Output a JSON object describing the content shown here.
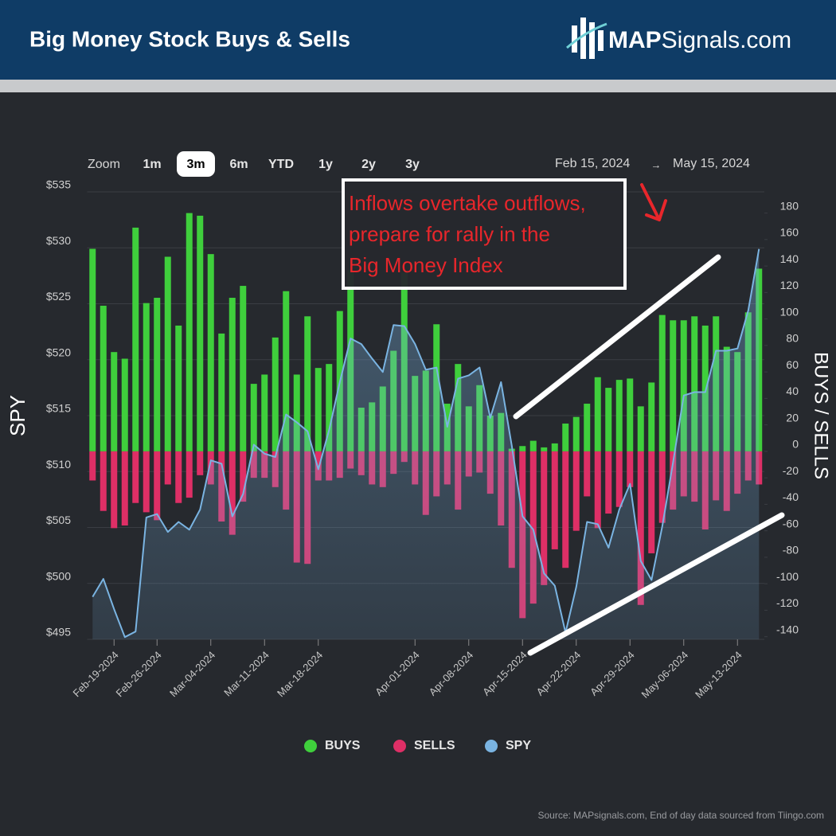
{
  "chart_data": {
    "type": "bar",
    "title": "Big Money Stock Buys & Sells",
    "brand": {
      "bold": "MAP",
      "rest": "Signals.com"
    },
    "zoom": {
      "label": "Zoom",
      "options": [
        "1m",
        "3m",
        "6m",
        "YTD",
        "1y",
        "2y",
        "3y"
      ],
      "selected": 1
    },
    "range": {
      "from": "Feb 15, 2024",
      "arrow": "→",
      "to": "May 15, 2024"
    },
    "annotation": [
      "Inflows overtake outflows,",
      "prepare for rally in the",
      "Big Money Index"
    ],
    "y_label": "SPY",
    "y2_label": "BUYS / SELLS",
    "source": "Source: MAPsignals.com, End of day data sourced from Tiingo.com",
    "categories": [
      null,
      null,
      "Feb-19-2024",
      null,
      null,
      null,
      "Feb-26-2024",
      null,
      null,
      null,
      null,
      "Mar-04-2024",
      null,
      null,
      null,
      null,
      "Mar-11-2024",
      null,
      null,
      null,
      null,
      "Mar-18-2024",
      null,
      null,
      null,
      null,
      null,
      null,
      null,
      null,
      "Apr-01-2024",
      null,
      null,
      null,
      null,
      "Apr-08-2024",
      null,
      null,
      null,
      null,
      "Apr-15-2024",
      null,
      null,
      null,
      null,
      "Apr-22-2024",
      null,
      null,
      null,
      null,
      "Apr-29-2024",
      null,
      null,
      null,
      null,
      "May-06-2024",
      null,
      null,
      null,
      null,
      "May-13-2024",
      null,
      null
    ],
    "series": [
      {
        "name": "BUYS",
        "type": "bar",
        "axis": "y2",
        "color": "#3fcf3c",
        "values": [
          153,
          110,
          75,
          70,
          169,
          112,
          116,
          147,
          95,
          180,
          178,
          149,
          89,
          116,
          125,
          51,
          58,
          86,
          121,
          58,
          102,
          63,
          66,
          106,
          137,
          33,
          37,
          49,
          76,
          135,
          57,
          61,
          96,
          36,
          66,
          34,
          50,
          27,
          29,
          2,
          4,
          8,
          3,
          6,
          21,
          26,
          36,
          56,
          48,
          54,
          55,
          34,
          52,
          103,
          99,
          99,
          102,
          95,
          102,
          79,
          75,
          105,
          138
        ]
      },
      {
        "name": "SELLS",
        "type": "bar",
        "axis": "y2",
        "color": "#de2f66",
        "values": [
          -22,
          -45,
          -58,
          -56,
          -39,
          -46,
          -52,
          -25,
          -39,
          -35,
          -18,
          -25,
          -53,
          -63,
          -38,
          -20,
          -20,
          -27,
          -44,
          -84,
          -85,
          -22,
          -22,
          -20,
          -13,
          -18,
          -25,
          -27,
          -17,
          -8,
          -25,
          -48,
          -34,
          -25,
          -44,
          -19,
          -16,
          -32,
          -56,
          -88,
          -126,
          -115,
          -101,
          -74,
          -88,
          -60,
          -34,
          -58,
          -47,
          -42,
          -27,
          -116,
          -77,
          -54,
          -44,
          -34,
          -38,
          -59,
          -37,
          -45,
          -32,
          -22,
          -25
        ]
      },
      {
        "name": "SPY",
        "type": "area",
        "axis": "y",
        "color": "#7ab4e2",
        "values": [
          498.8,
          500.4,
          497.7,
          495.2,
          495.7,
          505.9,
          506.2,
          504.6,
          505.5,
          504.8,
          506.6,
          511.0,
          510.7,
          506.0,
          508.0,
          512.4,
          511.6,
          511.3,
          515.1,
          514.4,
          513.6,
          510.2,
          513.7,
          518.0,
          521.9,
          521.4,
          520.1,
          518.9,
          523.1,
          523.0,
          521.4,
          519.1,
          519.3,
          514.0,
          518.3,
          518.6,
          519.3,
          514.8,
          518.0,
          512.3,
          506.0,
          504.8,
          500.9,
          499.8,
          495.6,
          499.7,
          505.5,
          505.3,
          503.2,
          506.6,
          508.9,
          502.0,
          500.3,
          505.1,
          510.8,
          516.8,
          517.1,
          517.1,
          520.8,
          520.8,
          521.0,
          524.4,
          529.9
        ]
      }
    ],
    "ylim": [
      495,
      535
    ],
    "yticks": [
      {
        "value": 495,
        "label": "$495"
      },
      {
        "value": 500,
        "label": "$500"
      },
      {
        "value": 505,
        "label": "$505"
      },
      {
        "value": 510,
        "label": "$510"
      },
      {
        "value": 515,
        "label": "$515"
      },
      {
        "value": 520,
        "label": "$520"
      },
      {
        "value": 525,
        "label": "$525"
      },
      {
        "value": 530,
        "label": "$530"
      },
      {
        "value": 535,
        "label": "$535"
      }
    ],
    "y2lim": [
      -142,
      196
    ],
    "y2ticks": [
      -140,
      -120,
      -100,
      -80,
      -60,
      -40,
      -20,
      0,
      20,
      40,
      60,
      80,
      100,
      120,
      140,
      160,
      180
    ],
    "grid": true,
    "legend": "bottom"
  }
}
